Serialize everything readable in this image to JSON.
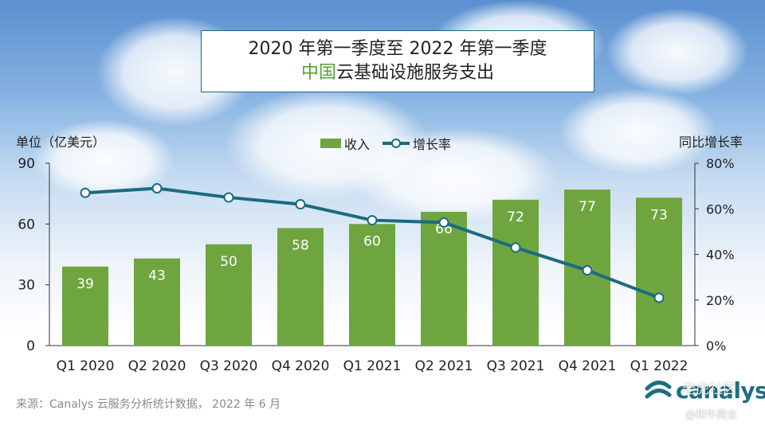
{
  "title": {
    "line1": "2020 年第一季度至 2022 年第一季度",
    "line2_highlight": "中国",
    "line2_rest": "云基础设施服务支出"
  },
  "axis": {
    "left_label": "单位（亿美元）",
    "right_label": "同比增长率"
  },
  "legend": {
    "bar_label": "收入",
    "line_label": "增长率"
  },
  "source": "来源：Canalys 云服务分析统计数据， 2022 年 6 月",
  "logo": {
    "text": "canalys"
  },
  "watermark": {
    "line1": "老虎社区",
    "line2": "@和牛商业"
  },
  "colors": {
    "bar": "#6fa53f",
    "line": "#1b6b80",
    "highlight": "#5aa032"
  },
  "chart_data": {
    "type": "bar",
    "categories": [
      "Q1 2020",
      "Q2 2020",
      "Q3 2020",
      "Q4 2020",
      "Q1 2021",
      "Q2 2021",
      "Q3 2021",
      "Q4 2021",
      "Q1 2022"
    ],
    "series": [
      {
        "name": "收入",
        "type": "bar",
        "axis": "left",
        "values": [
          39,
          43,
          50,
          58,
          60,
          66,
          72,
          77,
          73
        ]
      },
      {
        "name": "增长率",
        "type": "line",
        "axis": "right",
        "values": [
          67,
          69,
          65,
          62,
          55,
          54,
          43,
          33,
          21
        ]
      }
    ],
    "ylim": [
      0,
      90
    ],
    "yticks": [
      0,
      30,
      60,
      90
    ],
    "y2lim": [
      0,
      80
    ],
    "y2ticks": [
      "0%",
      "20%",
      "40%",
      "60%",
      "80%"
    ],
    "y2tick_values": [
      0,
      20,
      40,
      60,
      80
    ],
    "grid": false,
    "legend_position": "top-center"
  }
}
